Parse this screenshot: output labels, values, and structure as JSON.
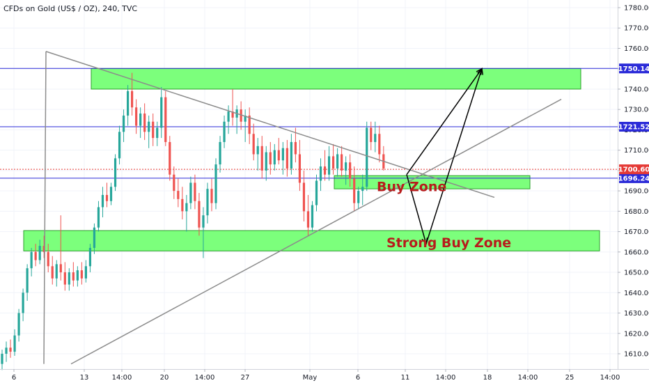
{
  "header": {
    "title": "CFDs on Gold (US$ / OZ), 240, TVC"
  },
  "colors": {
    "up": "#26a69a",
    "down": "#ef5350",
    "zone_fill": "#7cff7c",
    "zone_stroke": "#2e9e2e",
    "level_line": "#2a2ad8",
    "current_price": "#e53935",
    "trendline": "#8c8c8c",
    "arrow": "#000000",
    "label_text": "#b71c1c"
  },
  "chart_data": {
    "type": "candlestick",
    "title": "CFDs on Gold (US$ / OZ), 240, TVC",
    "symbol": "CFDs on Gold (US$ / OZ)",
    "timeframe": "240",
    "source": "TVC",
    "y_ticks": [
      1610,
      1620,
      1630,
      1640,
      1650,
      1660,
      1670,
      1680,
      1690,
      1700,
      1710,
      1720,
      1730,
      1740,
      1750,
      1760,
      1770,
      1780
    ],
    "ylim": [
      1605,
      1783
    ],
    "x_ticks": [
      "6",
      "13",
      "14:00",
      "20",
      "14:00",
      "27",
      "May",
      "6",
      "11",
      "14:00",
      "18",
      "14:00",
      "25",
      "14:00"
    ],
    "horizontal_levels": [
      1750.14,
      1721.52,
      1696.24
    ],
    "level_labels": [
      "1750.14",
      "1721.52",
      "1696.24"
    ],
    "current_price": 1700.6,
    "current_price_label": "1700.60",
    "zones": [
      {
        "name": "Top zone",
        "label": "",
        "top": 1750.1,
        "bottom": 1740.0
      },
      {
        "name": "Buy Zone",
        "label": "Buy Zone",
        "top": 1697.5,
        "bottom": 1691.0
      },
      {
        "name": "Strong Buy Zone",
        "label": "Strong Buy Zone",
        "top": 1670.5,
        "bottom": 1660.5
      }
    ],
    "candles": [
      {
        "o": 1605,
        "h": 1612,
        "l": 1602,
        "c": 1610
      },
      {
        "o": 1610,
        "h": 1616,
        "l": 1606,
        "c": 1613
      },
      {
        "o": 1613,
        "h": 1617,
        "l": 1608,
        "c": 1611
      },
      {
        "o": 1611,
        "h": 1622,
        "l": 1609,
        "c": 1619
      },
      {
        "o": 1619,
        "h": 1632,
        "l": 1616,
        "c": 1630
      },
      {
        "o": 1630,
        "h": 1642,
        "l": 1626,
        "c": 1640
      },
      {
        "o": 1640,
        "h": 1654,
        "l": 1636,
        "c": 1652
      },
      {
        "o": 1652,
        "h": 1662,
        "l": 1648,
        "c": 1660
      },
      {
        "o": 1660,
        "h": 1664,
        "l": 1653,
        "c": 1656
      },
      {
        "o": 1656,
        "h": 1666,
        "l": 1654,
        "c": 1663
      },
      {
        "o": 1663,
        "h": 1668,
        "l": 1657,
        "c": 1660
      },
      {
        "o": 1660,
        "h": 1664,
        "l": 1650,
        "c": 1653
      },
      {
        "o": 1653,
        "h": 1658,
        "l": 1644,
        "c": 1647
      },
      {
        "o": 1647,
        "h": 1656,
        "l": 1643,
        "c": 1654
      },
      {
        "o": 1654,
        "h": 1678,
        "l": 1646,
        "c": 1650
      },
      {
        "o": 1650,
        "h": 1655,
        "l": 1641,
        "c": 1644
      },
      {
        "o": 1644,
        "h": 1652,
        "l": 1641,
        "c": 1650
      },
      {
        "o": 1650,
        "h": 1655,
        "l": 1643,
        "c": 1646
      },
      {
        "o": 1646,
        "h": 1653,
        "l": 1643,
        "c": 1651
      },
      {
        "o": 1651,
        "h": 1655,
        "l": 1644,
        "c": 1647
      },
      {
        "o": 1647,
        "h": 1656,
        "l": 1645,
        "c": 1653
      },
      {
        "o": 1653,
        "h": 1664,
        "l": 1650,
        "c": 1662
      },
      {
        "o": 1662,
        "h": 1674,
        "l": 1659,
        "c": 1672
      },
      {
        "o": 1672,
        "h": 1685,
        "l": 1670,
        "c": 1682
      },
      {
        "o": 1682,
        "h": 1692,
        "l": 1677,
        "c": 1688
      },
      {
        "o": 1688,
        "h": 1694,
        "l": 1682,
        "c": 1685
      },
      {
        "o": 1685,
        "h": 1694,
        "l": 1683,
        "c": 1692
      },
      {
        "o": 1692,
        "h": 1708,
        "l": 1690,
        "c": 1706
      },
      {
        "o": 1706,
        "h": 1722,
        "l": 1703,
        "c": 1719
      },
      {
        "o": 1719,
        "h": 1730,
        "l": 1714,
        "c": 1727
      },
      {
        "o": 1727,
        "h": 1742,
        "l": 1722,
        "c": 1739
      },
      {
        "o": 1739,
        "h": 1748,
        "l": 1727,
        "c": 1731
      },
      {
        "o": 1731,
        "h": 1735,
        "l": 1718,
        "c": 1722
      },
      {
        "o": 1722,
        "h": 1731,
        "l": 1716,
        "c": 1728
      },
      {
        "o": 1728,
        "h": 1733,
        "l": 1715,
        "c": 1719
      },
      {
        "o": 1719,
        "h": 1727,
        "l": 1711,
        "c": 1724
      },
      {
        "o": 1724,
        "h": 1728,
        "l": 1712,
        "c": 1716
      },
      {
        "o": 1716,
        "h": 1724,
        "l": 1712,
        "c": 1721
      },
      {
        "o": 1721,
        "h": 1741,
        "l": 1716,
        "c": 1736
      },
      {
        "o": 1736,
        "h": 1739,
        "l": 1712,
        "c": 1714
      },
      {
        "o": 1714,
        "h": 1717,
        "l": 1695,
        "c": 1698
      },
      {
        "o": 1698,
        "h": 1702,
        "l": 1686,
        "c": 1690
      },
      {
        "o": 1690,
        "h": 1696,
        "l": 1682,
        "c": 1686
      },
      {
        "o": 1686,
        "h": 1692,
        "l": 1676,
        "c": 1680
      },
      {
        "o": 1680,
        "h": 1688,
        "l": 1670,
        "c": 1684
      },
      {
        "o": 1684,
        "h": 1697,
        "l": 1681,
        "c": 1694
      },
      {
        "o": 1694,
        "h": 1698,
        "l": 1681,
        "c": 1685
      },
      {
        "o": 1685,
        "h": 1689,
        "l": 1668,
        "c": 1672
      },
      {
        "o": 1672,
        "h": 1682,
        "l": 1657,
        "c": 1678
      },
      {
        "o": 1678,
        "h": 1694,
        "l": 1674,
        "c": 1691
      },
      {
        "o": 1691,
        "h": 1696,
        "l": 1680,
        "c": 1684
      },
      {
        "o": 1684,
        "h": 1706,
        "l": 1681,
        "c": 1703
      },
      {
        "o": 1703,
        "h": 1717,
        "l": 1699,
        "c": 1714
      },
      {
        "o": 1714,
        "h": 1727,
        "l": 1711,
        "c": 1724
      },
      {
        "o": 1724,
        "h": 1732,
        "l": 1718,
        "c": 1729
      },
      {
        "o": 1729,
        "h": 1740,
        "l": 1722,
        "c": 1726
      },
      {
        "o": 1726,
        "h": 1732,
        "l": 1718,
        "c": 1730
      },
      {
        "o": 1730,
        "h": 1734,
        "l": 1720,
        "c": 1724
      },
      {
        "o": 1724,
        "h": 1730,
        "l": 1714,
        "c": 1727
      },
      {
        "o": 1727,
        "h": 1731,
        "l": 1713,
        "c": 1718
      },
      {
        "o": 1718,
        "h": 1723,
        "l": 1705,
        "c": 1708
      },
      {
        "o": 1708,
        "h": 1716,
        "l": 1700,
        "c": 1712
      },
      {
        "o": 1712,
        "h": 1717,
        "l": 1696,
        "c": 1700
      },
      {
        "o": 1700,
        "h": 1712,
        "l": 1695,
        "c": 1709
      },
      {
        "o": 1709,
        "h": 1714,
        "l": 1698,
        "c": 1703
      },
      {
        "o": 1703,
        "h": 1713,
        "l": 1700,
        "c": 1710
      },
      {
        "o": 1710,
        "h": 1716,
        "l": 1703,
        "c": 1705
      },
      {
        "o": 1705,
        "h": 1714,
        "l": 1698,
        "c": 1711
      },
      {
        "o": 1711,
        "h": 1715,
        "l": 1697,
        "c": 1701
      },
      {
        "o": 1701,
        "h": 1718,
        "l": 1698,
        "c": 1714
      },
      {
        "o": 1714,
        "h": 1721,
        "l": 1704,
        "c": 1708
      },
      {
        "o": 1708,
        "h": 1715,
        "l": 1690,
        "c": 1694
      },
      {
        "o": 1694,
        "h": 1700,
        "l": 1675,
        "c": 1680
      },
      {
        "o": 1680,
        "h": 1688,
        "l": 1668,
        "c": 1672
      },
      {
        "o": 1672,
        "h": 1685,
        "l": 1670,
        "c": 1683
      },
      {
        "o": 1683,
        "h": 1698,
        "l": 1680,
        "c": 1695
      },
      {
        "o": 1695,
        "h": 1706,
        "l": 1690,
        "c": 1702
      },
      {
        "o": 1702,
        "h": 1710,
        "l": 1695,
        "c": 1698
      },
      {
        "o": 1698,
        "h": 1712,
        "l": 1695,
        "c": 1707
      },
      {
        "o": 1707,
        "h": 1713,
        "l": 1698,
        "c": 1701
      },
      {
        "o": 1701,
        "h": 1711,
        "l": 1697,
        "c": 1708
      },
      {
        "o": 1708,
        "h": 1712,
        "l": 1697,
        "c": 1700
      },
      {
        "o": 1700,
        "h": 1707,
        "l": 1693,
        "c": 1704
      },
      {
        "o": 1704,
        "h": 1708,
        "l": 1692,
        "c": 1696
      },
      {
        "o": 1696,
        "h": 1702,
        "l": 1680,
        "c": 1684
      },
      {
        "o": 1684,
        "h": 1692,
        "l": 1681,
        "c": 1690
      },
      {
        "o": 1690,
        "h": 1698,
        "l": 1683,
        "c": 1692
      },
      {
        "o": 1692,
        "h": 1724,
        "l": 1690,
        "c": 1721
      },
      {
        "o": 1721,
        "h": 1724,
        "l": 1710,
        "c": 1714
      },
      {
        "o": 1714,
        "h": 1724,
        "l": 1709,
        "c": 1718
      },
      {
        "o": 1718,
        "h": 1722,
        "l": 1704,
        "c": 1708
      },
      {
        "o": 1708,
        "h": 1712,
        "l": 1700,
        "c": 1701
      }
    ],
    "trendlines": [
      {
        "name": "descending",
        "from": [
          66,
          1758.5
        ],
        "to": [
          710,
          1686.8
        ]
      },
      {
        "name": "ascending",
        "from": [
          102,
          1605
        ],
        "to": [
          806,
          1735
        ]
      },
      {
        "name": "vertical",
        "from": [
          66,
          1758.5
        ],
        "to": [
          63,
          1605
        ]
      }
    ],
    "arrows": [
      {
        "from": [
          584,
          1698
        ],
        "to": [
          612,
          1664
        ]
      },
      {
        "from": [
          612,
          1664
        ],
        "to": [
          692,
          1750
        ]
      },
      {
        "from": [
          584,
          1698
        ],
        "to": [
          692,
          1750
        ]
      }
    ]
  }
}
